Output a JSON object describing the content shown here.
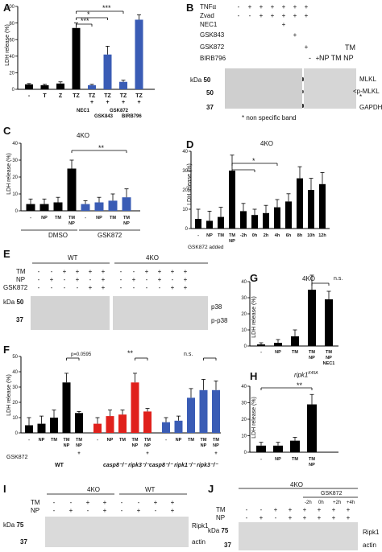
{
  "panel_labels": {
    "A": "A",
    "B": "B",
    "C": "C",
    "D": "D",
    "E": "E",
    "F": "F",
    "G": "G",
    "H": "H",
    "I": "I",
    "J": "J"
  },
  "common": {
    "ldh_label": "LDH release (%)",
    "kda": "kDa",
    "sig2": "**",
    "sig3": "***",
    "sig1": "*",
    "ns": "n.s.",
    "pval": "p=0.0595"
  },
  "panel_A": {
    "xlabels": [
      "-",
      "T",
      "Z",
      "TZ",
      "TZ",
      "TZ",
      "TZ",
      "TZ"
    ],
    "subs": {
      "nec1": "NEC1",
      "gsk843": "GSK843",
      "gsk872": "GSK872",
      "birb": "BIRB796"
    },
    "plus": "+"
  },
  "panel_B": {
    "rows": [
      "TNFα",
      "Zvad",
      "NEC1",
      "GSK843",
      "GSK872",
      "BIRB796"
    ],
    "tm": "TM",
    "np_tm": "NP TM NP",
    "dash": "-",
    "kda_vals": [
      "50",
      "50",
      "37"
    ],
    "bands": [
      "MLKL",
      "p-MLKL",
      "*",
      "GAPDH"
    ],
    "footnote": "* non specific band"
  },
  "panel_C": {
    "title": "4KO",
    "groups": [
      "DMSO",
      "GSK872"
    ],
    "xlabels": [
      "-",
      "NP",
      "TM",
      "TM NP",
      "-",
      "NP",
      "TM",
      "TM NP"
    ]
  },
  "panel_D": {
    "title": "4KO",
    "xlabels": [
      "-",
      "NP",
      "TM",
      "TM NP",
      "-2h",
      "0h",
      "2h",
      "4h",
      "6h",
      "8h",
      "10h",
      "12h"
    ],
    "gsk_added": "GSK872 added"
  },
  "panel_E": {
    "wt": "WT",
    "ko": "4KO",
    "rows": [
      "TM",
      "NP",
      "GSK872"
    ],
    "kda_vals": [
      "50",
      "37"
    ],
    "bands": [
      "p38",
      "p-p38"
    ]
  },
  "panel_F": {
    "xlabels": [
      "-",
      "NP",
      "TM",
      "TM NP",
      "TM NP"
    ],
    "gsk": "GSK872",
    "groups": [
      "WT",
      "casp8⁻/⁻ ripk3⁻/⁻",
      "casp8⁻/⁻ ripk1⁻/⁻ ripk3⁻/⁻"
    ]
  },
  "panel_G": {
    "title": "4KO",
    "xlabels": [
      "-",
      "NP",
      "TM",
      "TM NP",
      "TM NP NEC1"
    ]
  },
  "panel_H": {
    "title": "ripk1",
    "sup": "K45A",
    "xlabels": [
      "-",
      "NP",
      "TM",
      "TM NP"
    ]
  },
  "panel_I": {
    "ko": "4KO",
    "wt": "WT",
    "rows": [
      "TM",
      "NP"
    ],
    "kda_vals": [
      "75",
      "37"
    ],
    "bands": [
      "Ripk1",
      "actin"
    ]
  },
  "panel_J": {
    "ko": "4KO",
    "gsk": "GSK872",
    "times": [
      "-2h",
      "0h",
      "+2h",
      "+4h"
    ],
    "rows": [
      "TM",
      "NP"
    ],
    "kda_vals": [
      "75",
      "37"
    ],
    "bands": [
      "Ripk1",
      "actin"
    ]
  },
  "chart_data": [
    {
      "panel": "A",
      "type": "bar",
      "ylim": [
        0,
        100
      ],
      "yticks": [
        0,
        20,
        40,
        60,
        80,
        100
      ],
      "values": [
        6,
        5,
        7,
        74,
        5,
        42,
        9,
        84
      ],
      "errors": [
        1,
        1,
        2,
        6,
        1,
        10,
        2,
        6
      ],
      "colors": [
        "#000",
        "#000",
        "#000",
        "#000",
        "#3a5cb5",
        "#3a5cb5",
        "#3a5cb5",
        "#3a5cb5"
      ]
    },
    {
      "panel": "C",
      "type": "bar",
      "ylim": [
        0,
        40
      ],
      "yticks": [
        0,
        10,
        20,
        30,
        40
      ],
      "values": [
        4,
        4,
        5,
        25,
        4,
        5,
        6,
        8
      ],
      "errors": [
        3,
        3,
        3,
        5,
        2,
        3,
        4,
        5
      ],
      "colors": [
        "#000",
        "#000",
        "#000",
        "#000",
        "#3a5cb5",
        "#3a5cb5",
        "#3a5cb5",
        "#3a5cb5"
      ]
    },
    {
      "panel": "D",
      "type": "bar",
      "ylim": [
        0,
        40
      ],
      "yticks": [
        0,
        10,
        20,
        30,
        40
      ],
      "values": [
        5,
        4,
        6,
        30,
        9,
        7,
        8,
        11,
        14,
        26,
        20,
        23
      ],
      "errors": [
        5,
        5,
        5,
        8,
        4,
        3,
        4,
        4,
        4,
        6,
        6,
        6
      ]
    },
    {
      "panel": "F",
      "type": "bar",
      "ylim": [
        0,
        50
      ],
      "yticks": [
        0,
        10,
        20,
        30,
        40,
        50
      ],
      "values": [
        5,
        6,
        10,
        33,
        13,
        6,
        11,
        12,
        33,
        14,
        7,
        8,
        23,
        28,
        28
      ],
      "errors": [
        5,
        5,
        5,
        6,
        1,
        4,
        4,
        3,
        6,
        2,
        3,
        3,
        6,
        7,
        6
      ],
      "colors": [
        "#000",
        "#000",
        "#000",
        "#000",
        "#000",
        "#e0211c",
        "#e0211c",
        "#e0211c",
        "#e0211c",
        "#e0211c",
        "#3a5cb5",
        "#3a5cb5",
        "#3a5cb5",
        "#3a5cb5",
        "#3a5cb5"
      ]
    },
    {
      "panel": "G",
      "type": "bar",
      "ylim": [
        0,
        40
      ],
      "yticks": [
        0,
        10,
        20,
        30,
        40
      ],
      "values": [
        1,
        2,
        6,
        35,
        29
      ],
      "errors": [
        1,
        2,
        4,
        9,
        5
      ]
    },
    {
      "panel": "H",
      "type": "bar",
      "ylim": [
        0,
        40
      ],
      "yticks": [
        0,
        10,
        20,
        30,
        40
      ],
      "values": [
        4,
        4,
        7,
        29
      ],
      "errors": [
        2,
        2,
        2,
        6
      ]
    }
  ]
}
